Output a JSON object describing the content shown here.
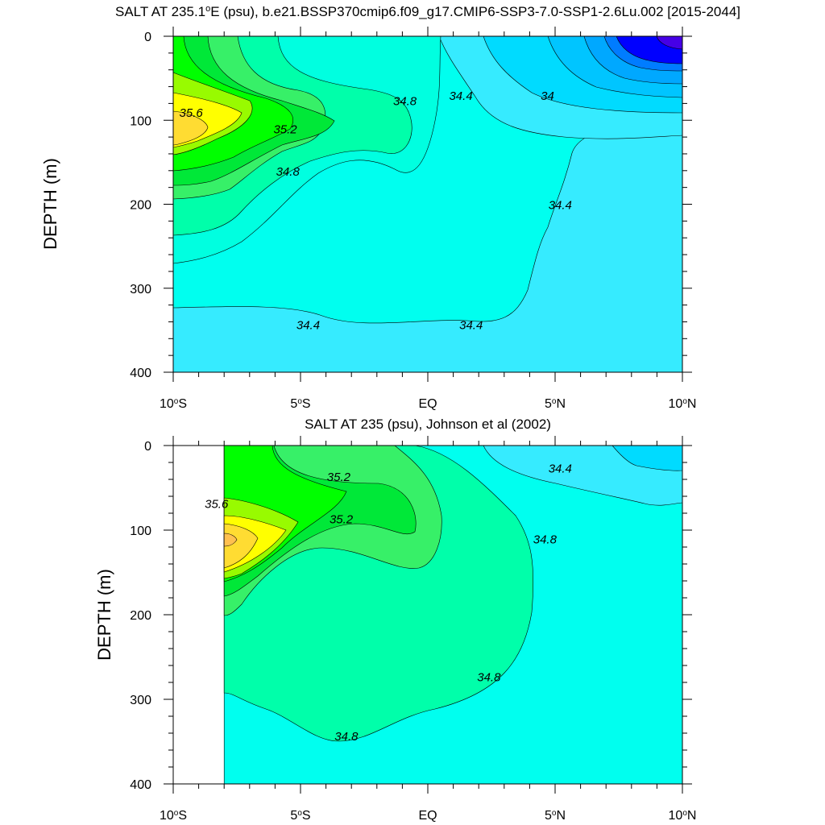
{
  "chart_data": [
    {
      "type": "heatmap",
      "subtype": "filled-contour",
      "title_main": "SALT AT 235.1",
      "title_sup": "o",
      "title_rest": "E (psu), b.e21.BSSP370cmip6.f09_g17.CMIP6-SSP3-7.0-SSP1-2.6Lu.002 [2015-2044]",
      "ylabel": "DEPTH (m)",
      "xlim": [
        -10,
        10
      ],
      "ylim": [
        400,
        0
      ],
      "yticks": [
        "0",
        "100",
        "200",
        "300",
        "400"
      ],
      "xticks": [
        {
          "main": "10",
          "sup": "o",
          "suffix": "S"
        },
        {
          "main": "5",
          "sup": "o",
          "suffix": "S"
        },
        {
          "main": "EQ",
          "sup": "",
          "suffix": ""
        },
        {
          "main": "5",
          "sup": "o",
          "suffix": "N"
        },
        {
          "main": "10",
          "sup": "o",
          "suffix": "N"
        }
      ],
      "contour_levels_labeled": [
        "35.6",
        "35.2",
        "34.8",
        "34.4",
        "34"
      ],
      "contour_labels": [
        {
          "text": "35.6",
          "lon": -9.3,
          "depth": 92
        },
        {
          "text": "35.2",
          "lon": -5.6,
          "depth": 112
        },
        {
          "text": "34.8",
          "lon": -5.5,
          "depth": 162
        },
        {
          "text": "34.8",
          "lon": -0.9,
          "depth": 78
        },
        {
          "text": "34.4",
          "lon": 1.3,
          "depth": 72
        },
        {
          "text": "34",
          "lon": 4.7,
          "depth": 72
        },
        {
          "text": "34.4",
          "lon": 5.2,
          "depth": 202
        },
        {
          "text": "34.4",
          "lon": -4.7,
          "depth": 345
        },
        {
          "text": "34.4",
          "lon": 1.7,
          "depth": 345
        }
      ]
    },
    {
      "type": "heatmap",
      "subtype": "filled-contour",
      "title": "SALT AT 235 (psu), Johnson et al (2002)",
      "ylabel": "DEPTH (m)",
      "xlim": [
        -10,
        10
      ],
      "ylim": [
        400,
        0
      ],
      "data_lon_start": -8,
      "yticks": [
        "0",
        "100",
        "200",
        "300",
        "400"
      ],
      "xticks": [
        {
          "main": "10",
          "sup": "o",
          "suffix": "S"
        },
        {
          "main": "5",
          "sup": "o",
          "suffix": "S"
        },
        {
          "main": "EQ",
          "sup": "",
          "suffix": ""
        },
        {
          "main": "5",
          "sup": "o",
          "suffix": "N"
        },
        {
          "main": "10",
          "sup": "o",
          "suffix": "N"
        }
      ],
      "contour_labels": [
        {
          "text": "35.6",
          "lon": -8.3,
          "depth": 70
        },
        {
          "text": "35.2",
          "lon": -3.5,
          "depth": 38
        },
        {
          "text": "35.2",
          "lon": -3.4,
          "depth": 88
        },
        {
          "text": "34.4",
          "lon": 5.2,
          "depth": 28
        },
        {
          "text": "34.8",
          "lon": 4.6,
          "depth": 112
        },
        {
          "text": "34.8",
          "lon": 2.4,
          "depth": 275
        },
        {
          "text": "34.8",
          "lon": -3.2,
          "depth": 345
        }
      ]
    }
  ],
  "colors": {
    "c_34_4_34_8_lo": "#00ffef",
    "c_34_6_34_8": "#00ffe0",
    "c_34_8_35_0": "#00ffaa",
    "c_35_0_35_2": "#37f068",
    "c_35_2_35_4": "#00e838",
    "c_35_4_35_6": "#00ff00",
    "c_35_6_35_8": "#98fb00",
    "c_35_8_36_0": "#ffff00",
    "c_36_0_plus": "#ffdc32",
    "c_36_2_plus": "#ffc050",
    "c_34_2_34_4": "#36ebff",
    "c_34_0_34_2": "#00dbff",
    "c_33_8_34_0": "#00c5ff",
    "c_33_6_33_8": "#00a8ff",
    "c_33_4_33_6": "#007cff",
    "c_33_2_33_4": "#0044ff",
    "c_33_0_33_2": "#0000ff",
    "c_min": "#4600e6"
  }
}
